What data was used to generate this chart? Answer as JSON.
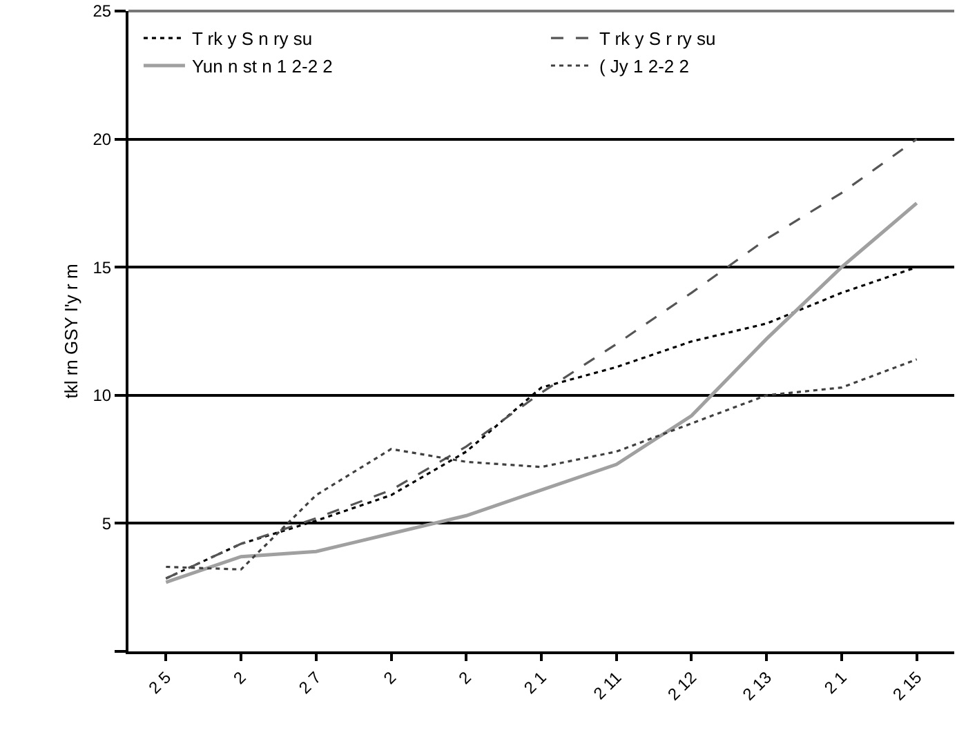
{
  "chart_data": {
    "type": "line",
    "ylabel": "tkl rn GSY I'y r m",
    "categories": [
      "2 5",
      "2",
      "2 7",
      "2",
      "2",
      "2 1",
      "2 11",
      "2 12",
      "2 13",
      "2 1",
      "2 15"
    ],
    "series": [
      {
        "name": "T rk y S n ry su",
        "color": "#000000",
        "line_style": "dotted",
        "values": [
          2.85,
          4.2,
          5.1,
          6.1,
          7.8,
          10.3,
          11.1,
          12.1,
          12.8,
          14.0,
          15.0
        ]
      },
      {
        "name": "T rk y S r ry su",
        "color": "#555555",
        "line_style": "dashed",
        "values": [
          2.85,
          4.2,
          5.2,
          6.3,
          8.0,
          10.1,
          12.0,
          14.0,
          16.1,
          17.9,
          20.0
        ]
      },
      {
        "name": "Yun n st n 1 2-2 2",
        "color": "#a0a0a0",
        "line_style": "solid",
        "values": [
          2.7,
          3.7,
          3.9,
          4.6,
          5.3,
          6.3,
          7.3,
          9.2,
          12.2,
          15.0,
          17.5
        ]
      },
      {
        "name": "( Jy 1 2-2 2",
        "color": "#404040",
        "line_style": "dotted",
        "values": [
          3.3,
          3.2,
          6.1,
          7.9,
          7.4,
          7.2,
          7.8,
          8.9,
          10.0,
          10.3,
          11.4
        ]
      }
    ],
    "ylim": [
      0,
      25
    ],
    "yticks": [
      {
        "value": 0,
        "label": null
      },
      5,
      10,
      15,
      20,
      25
    ],
    "grid": "y",
    "legend": "top left"
  }
}
